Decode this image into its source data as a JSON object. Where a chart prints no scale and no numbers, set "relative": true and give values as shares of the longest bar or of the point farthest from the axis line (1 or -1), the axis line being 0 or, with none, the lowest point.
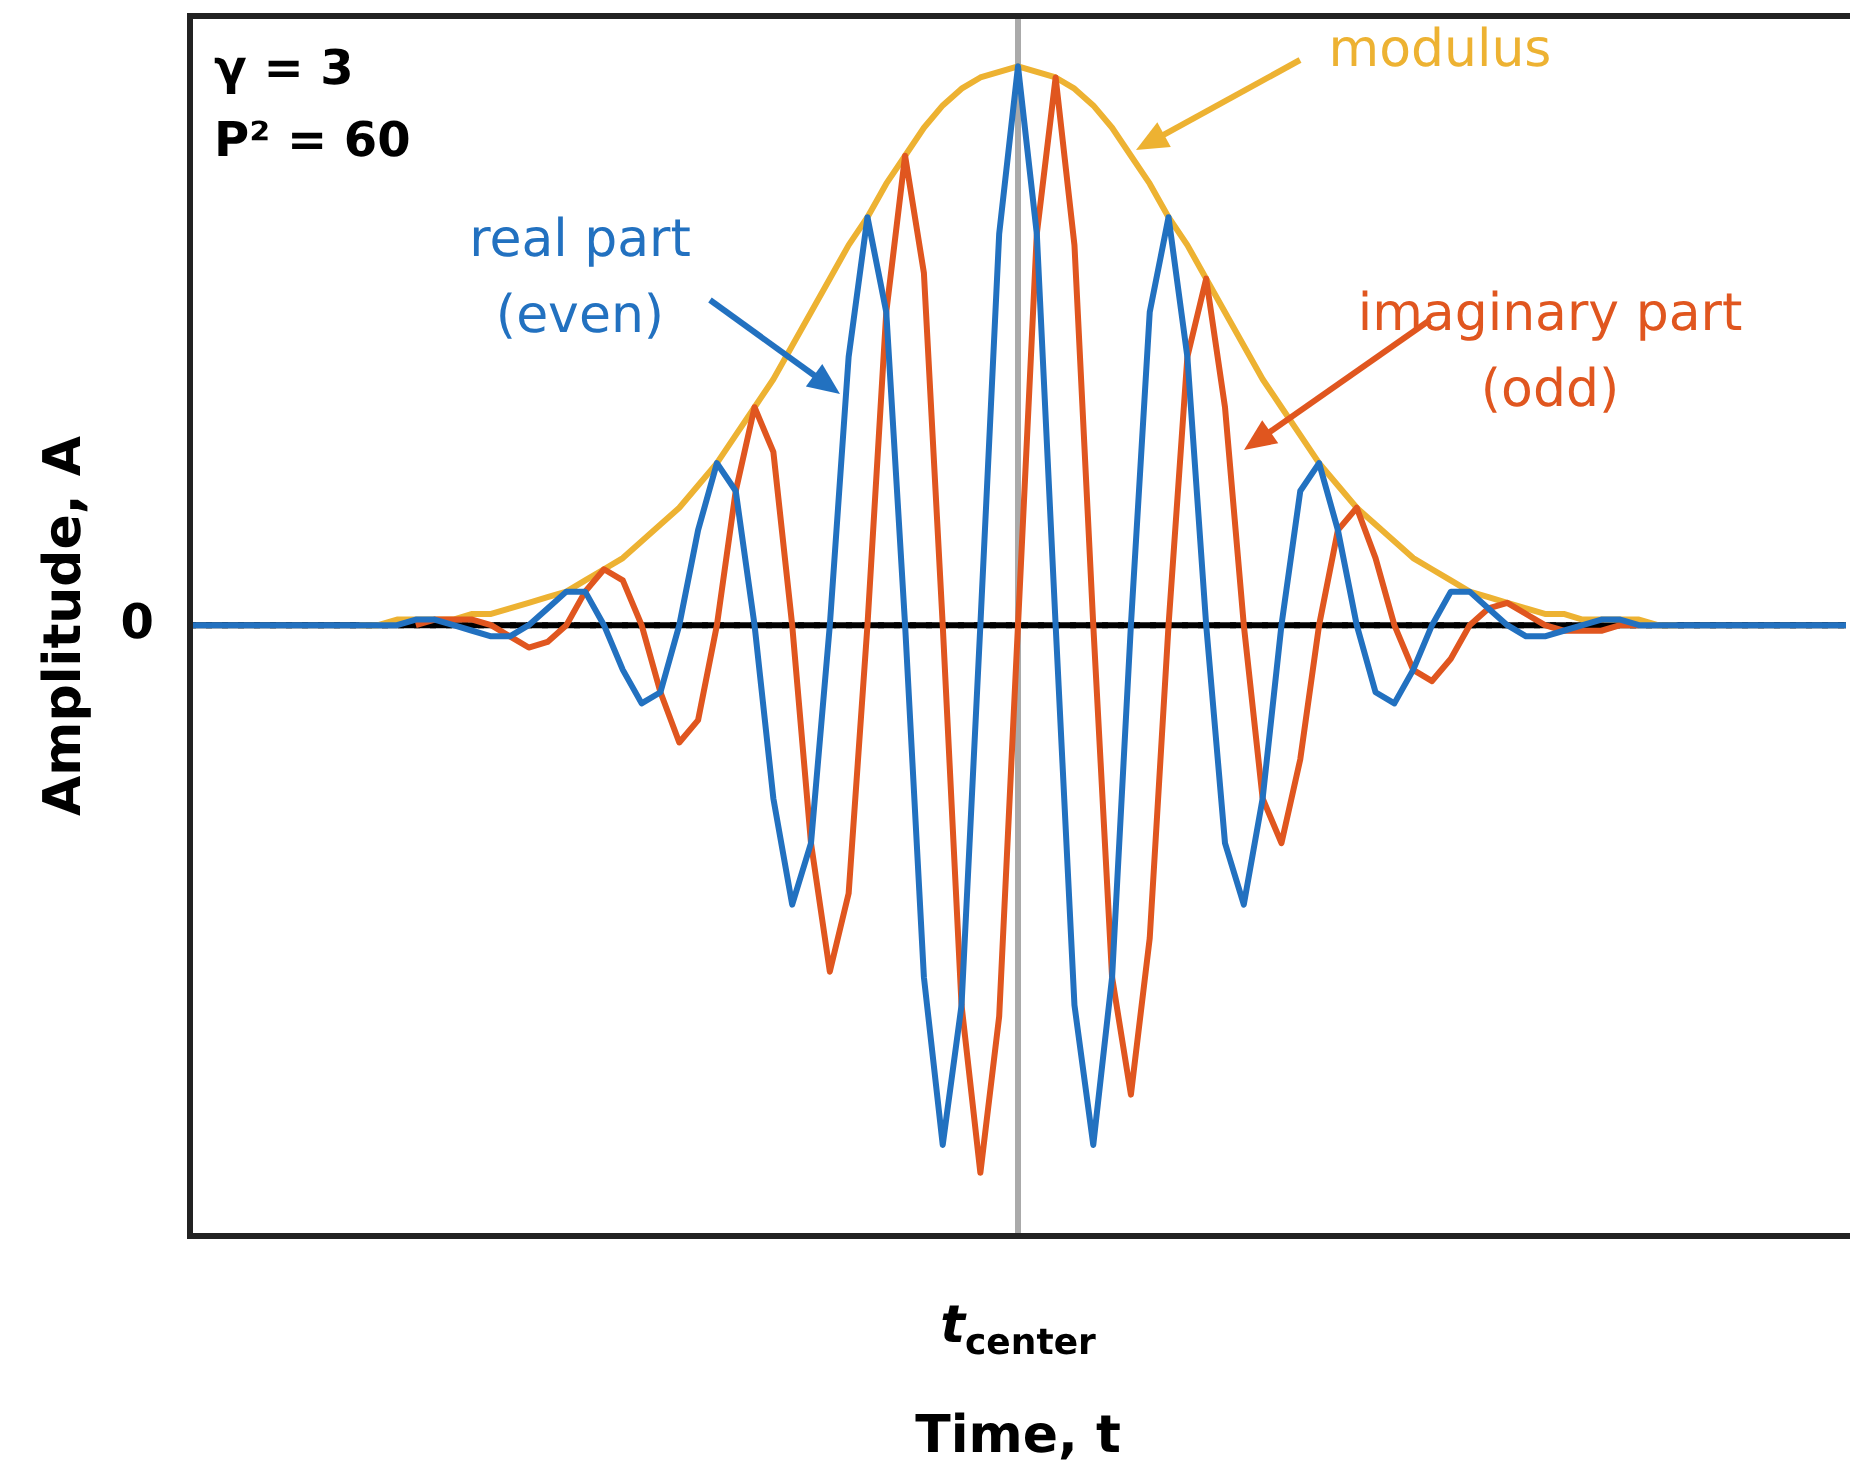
{
  "chart_data": {
    "type": "line",
    "relative": true,
    "xlabel": "Time, t",
    "ylabel": "Amplitude, A",
    "categories": [
      null,
      null,
      null,
      null,
      null,
      null,
      null,
      null,
      null,
      null,
      null,
      null,
      null,
      null,
      null,
      null,
      null,
      null,
      null,
      null,
      null,
      null,
      null,
      null,
      null,
      null,
      null,
      null,
      null,
      null,
      null,
      null,
      null,
      null,
      null,
      null,
      null,
      null,
      null,
      null,
      null,
      null,
      null,
      null,
      null,
      null,
      null,
      null,
      null,
      null,
      null,
      null,
      null,
      null,
      null,
      null,
      null,
      null,
      null,
      null,
      null,
      null,
      null,
      null,
      null,
      null,
      null,
      null,
      null,
      null,
      null,
      null,
      null,
      null,
      null,
      null,
      null,
      null,
      null,
      null,
      null,
      null,
      null,
      null,
      null,
      null,
      null,
      null,
      null
    ],
    "annotations": [
      "γ = 3",
      "P² = 60"
    ],
    "ref_lines": [
      {
        "axis": "y",
        "value": 0,
        "label": "0",
        "color": "#000000",
        "line_style": "dotted"
      },
      {
        "axis": "x",
        "label": "t$_{center}$",
        "color": "#aaaaaa",
        "line_style": "solid"
      }
    ],
    "marker": "none",
    "legend": false,
    "series": [
      {
        "name": "real part (even)",
        "color": "#2271c0",
        "values": [
          0,
          0,
          0,
          0,
          0,
          0,
          0,
          0,
          0,
          0,
          0,
          0,
          0.01,
          0.01,
          0,
          -0.01,
          -0.02,
          -0.02,
          0,
          0.03,
          0.06,
          0.06,
          0,
          -0.08,
          -0.14,
          -0.12,
          0,
          0.17,
          0.29,
          0.24,
          0,
          -0.31,
          -0.5,
          -0.39,
          0,
          0.48,
          0.73,
          0.56,
          0,
          -0.63,
          -0.93,
          -0.68,
          0,
          0.7,
          1,
          0.7,
          0,
          -0.68,
          -0.93,
          -0.63,
          0,
          0.56,
          0.73,
          0.48,
          0,
          -0.39,
          -0.5,
          -0.31,
          0,
          0.24,
          0.29,
          0.17,
          0,
          -0.12,
          -0.14,
          -0.08,
          0,
          0.06,
          0.06,
          0.03,
          0,
          -0.02,
          -0.02,
          -0.01,
          0,
          0.01,
          0.01,
          0,
          0,
          0,
          0,
          0,
          0,
          0,
          0,
          0,
          0,
          0,
          0
        ]
      },
      {
        "name": "imaginary part (odd)",
        "color": "#e0561f",
        "values": [
          null,
          null,
          null,
          null,
          null,
          null,
          null,
          null,
          null,
          null,
          null,
          null,
          0,
          0.01,
          0.01,
          0.01,
          0,
          -0.02,
          -0.04,
          -0.03,
          0,
          0.06,
          0.1,
          0.08,
          0,
          -0.12,
          -0.21,
          -0.17,
          0,
          0.24,
          0.39,
          0.31,
          0,
          -0.39,
          -0.62,
          -0.48,
          0,
          0.56,
          0.84,
          0.63,
          0,
          -0.68,
          -0.98,
          -0.7,
          0,
          0.7,
          0.98,
          0.68,
          0,
          -0.63,
          -0.84,
          -0.56,
          0,
          0.48,
          0.62,
          0.39,
          0,
          -0.31,
          -0.39,
          -0.24,
          0,
          0.17,
          0.21,
          0.12,
          0,
          -0.08,
          -0.1,
          -0.06,
          0,
          0.03,
          0.04,
          0.02,
          0,
          -0.01,
          -0.01,
          -0.01,
          0,
          0,
          null,
          null,
          null,
          null,
          null,
          null,
          null,
          null,
          null,
          null,
          null
        ]
      },
      {
        "name": "modulus",
        "color": "#edb232",
        "values": [
          null,
          null,
          null,
          null,
          null,
          null,
          null,
          null,
          null,
          0,
          0,
          0.01,
          0.01,
          0.01,
          0.01,
          0.02,
          0.02,
          0.03,
          0.04,
          0.05,
          0.06,
          0.08,
          0.1,
          0.12,
          0.15,
          0.18,
          0.21,
          0.25,
          0.29,
          0.34,
          0.39,
          0.44,
          0.5,
          0.56,
          0.62,
          0.68,
          0.73,
          0.79,
          0.84,
          0.89,
          0.93,
          0.96,
          0.98,
          0.99,
          1,
          0.99,
          0.98,
          0.96,
          0.93,
          0.89,
          0.84,
          0.79,
          0.73,
          0.68,
          0.62,
          0.56,
          0.5,
          0.44,
          0.39,
          0.34,
          0.29,
          0.25,
          0.21,
          0.18,
          0.15,
          0.12,
          0.1,
          0.08,
          0.06,
          0.05,
          0.04,
          0.03,
          0.02,
          0.02,
          0.01,
          0.01,
          0.01,
          0.01,
          0,
          0,
          null,
          null,
          null,
          null,
          null,
          null,
          null,
          null,
          null
        ]
      }
    ]
  }
}
